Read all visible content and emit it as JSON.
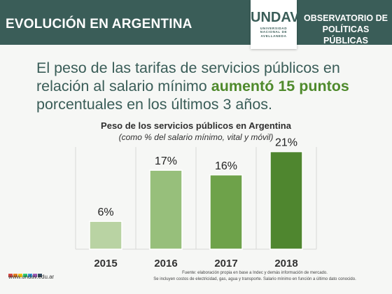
{
  "header": {
    "title": "EVOLUCIÓN EN ARGENTINA",
    "logo_word": "UNDAV",
    "logo_lines": [
      "UNIVERSIDAD",
      "NACIONAL DE",
      "AVELLANEDA"
    ],
    "right_line1": "OBSERVATORIO DE",
    "right_line2": "POLÍTICAS PÚBLICAS"
  },
  "headline": {
    "part1": "El peso de las tarifas de servicios públicos en relación al salario mínimo ",
    "highlight1": "aumentó 15",
    "part2": " ",
    "highlight2": "puntos",
    "part3": " porcentuales en los últimos 3 años."
  },
  "footer": {
    "url": "www.undav.edu.ar",
    "source_line1": "Fuente: elaboración propia en base a Indec y demás información de mercado.",
    "source_line2": "Se incluyen costos de electricidad, gas, agua y transporte. Salario mínimo en función a último dato conocido.",
    "dot_colors": [
      "#d64541",
      "#e67e22",
      "#f1c40f",
      "#2ecc71",
      "#3498db",
      "#9b59b6",
      "#34495e"
    ]
  },
  "colors": {
    "header_bg": "#3a5d58",
    "accent": "#4f8a2c",
    "gridline": "#d8d8d8"
  },
  "chart_data": {
    "type": "bar",
    "title": "Peso de los servicios públicos  en Argentina",
    "subtitle": "(como % del salario mínimo, vital y móvil)",
    "categories": [
      "2015",
      "2016",
      "2017",
      "2018"
    ],
    "values": [
      6,
      17,
      16,
      21
    ],
    "value_labels": [
      "6%",
      "17%",
      "16%",
      "21%"
    ],
    "bar_colors": [
      "#b9d3a3",
      "#97bf7b",
      "#6ea24a",
      "#4f862f"
    ],
    "ylim": [
      0,
      22
    ],
    "grid": true,
    "xlabel": "",
    "ylabel": ""
  }
}
